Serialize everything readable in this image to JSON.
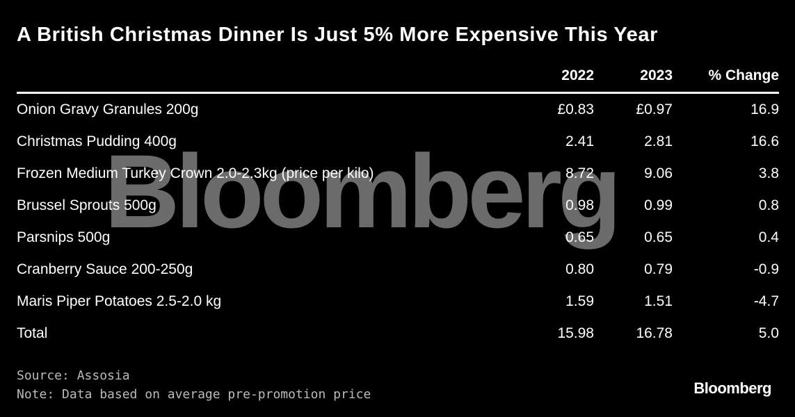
{
  "title": "A British Christmas Dinner Is Just 5% More Expensive This Year",
  "watermark_text": "Bloomberg",
  "chart_data": {
    "type": "table",
    "title": "A British Christmas Dinner Is Just 5% More Expensive This Year",
    "columns": [
      "",
      "2022",
      "2023",
      "% Change"
    ],
    "rows": [
      {
        "item": "Onion Gravy Granules 200g",
        "y2022": "£0.83",
        "y2023": "£0.97",
        "change": "16.9"
      },
      {
        "item": "Christmas Pudding 400g",
        "y2022": "2.41",
        "y2023": "2.81",
        "change": "16.6"
      },
      {
        "item": "Frozen Medium Turkey Crown 2.0-2.3kg (price per kilo)",
        "y2022": "8.72",
        "y2023": "9.06",
        "change": "3.8"
      },
      {
        "item": "Brussel Sprouts 500g",
        "y2022": "0.98",
        "y2023": "0.99",
        "change": "0.8"
      },
      {
        "item": "Parsnips 500g",
        "y2022": "0.65",
        "y2023": "0.65",
        "change": "0.4"
      },
      {
        "item": "Cranberry Sauce 200-250g",
        "y2022": "0.80",
        "y2023": "0.79",
        "change": "-0.9"
      },
      {
        "item": "Maris Piper Potatoes 2.5-2.0 kg",
        "y2022": "1.59",
        "y2023": "1.51",
        "change": "-4.7"
      },
      {
        "item": "Total",
        "y2022": "15.98",
        "y2023": "16.78",
        "change": "5.0"
      }
    ]
  },
  "footer": {
    "source": "Source: Assosia",
    "note": "Note: Data based on average pre-promotion price"
  },
  "logo": "Bloomberg",
  "colors": {
    "background": "#000000",
    "text": "#ffffff",
    "footer_text": "#bbbbbb"
  }
}
